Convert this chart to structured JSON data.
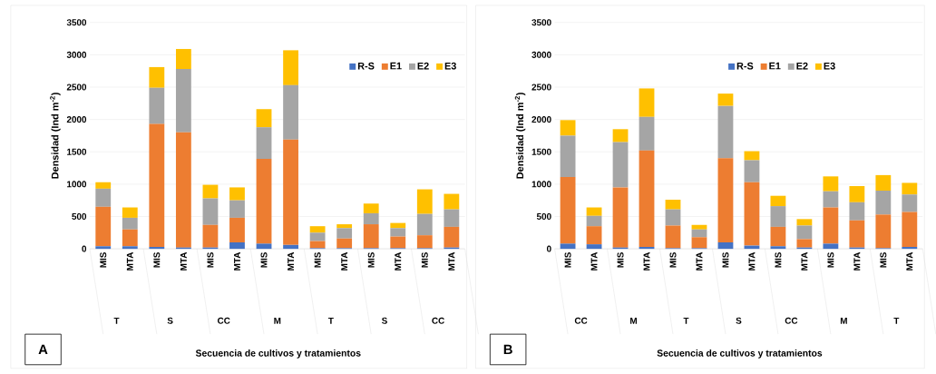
{
  "chart_data": [
    {
      "type": "bar",
      "stacked": true,
      "title": "A",
      "xlabel": "Secuencia de cultivos y tratamientos",
      "ylabel": "Densidad (Ind m$^{-2}$)",
      "categories": [
        "MIS",
        "MTA",
        "MIS",
        "MTA",
        "MIS",
        "MTA",
        "MIS",
        "MTA",
        "MIS",
        "MTA",
        "MIS",
        "MTA",
        "MIS",
        "MTA"
      ],
      "annotations": [
        "T",
        "S",
        "CC",
        "M",
        "T",
        "S",
        "CC"
      ],
      "series": [
        {
          "name": "R-S",
          "color": "#4472c4",
          "values": [
            40,
            40,
            30,
            20,
            20,
            100,
            80,
            60,
            10,
            10,
            10,
            10,
            10,
            20
          ]
        },
        {
          "name": "E1",
          "color": "#ed7d31",
          "values": [
            610,
            260,
            1900,
            1780,
            350,
            380,
            1310,
            1630,
            110,
            150,
            370,
            180,
            200,
            320
          ]
        },
        {
          "name": "E2",
          "color": "#a5a5a5",
          "values": [
            280,
            180,
            560,
            980,
            410,
            270,
            490,
            840,
            130,
            160,
            170,
            130,
            330,
            270
          ]
        },
        {
          "name": "E3",
          "color": "#ffc000",
          "values": [
            100,
            160,
            320,
            310,
            210,
            200,
            280,
            540,
            100,
            60,
            150,
            80,
            380,
            240
          ]
        }
      ],
      "ylim": [
        0,
        3500
      ],
      "yticks": [
        0,
        500,
        1000,
        1500,
        2000,
        2500,
        3000,
        3500
      ],
      "grid": "y",
      "legend": "top right"
    },
    {
      "type": "bar",
      "stacked": true,
      "title": "B",
      "xlabel": "Secuencia de cultivos y tratamientos",
      "ylabel": "Densidad (Ind m$^{-2}$)",
      "categories": [
        "MIS",
        "MTA",
        "MIS",
        "MTA",
        "MIS",
        "MTA",
        "MIS",
        "MTA",
        "MIS",
        "MTA",
        "MIS",
        "MTA",
        "MIS",
        "MTA"
      ],
      "annotations": [
        "CC",
        "M",
        "T",
        "S",
        "CC",
        "M",
        "T"
      ],
      "series": [
        {
          "name": "R-S",
          "color": "#4472c4",
          "values": [
            80,
            70,
            20,
            30,
            10,
            10,
            100,
            50,
            40,
            20,
            80,
            20,
            10,
            30
          ]
        },
        {
          "name": "E1",
          "color": "#ed7d31",
          "values": [
            1030,
            280,
            930,
            1490,
            350,
            170,
            1300,
            980,
            300,
            130,
            560,
            420,
            520,
            540
          ]
        },
        {
          "name": "E2",
          "color": "#a5a5a5",
          "values": [
            640,
            160,
            700,
            520,
            250,
            120,
            810,
            340,
            320,
            210,
            250,
            280,
            370,
            270
          ]
        },
        {
          "name": "E3",
          "color": "#ffc000",
          "values": [
            240,
            130,
            200,
            440,
            150,
            70,
            190,
            140,
            160,
            100,
            230,
            250,
            240,
            180
          ]
        }
      ],
      "ylim": [
        0,
        3500
      ],
      "yticks": [
        0,
        500,
        1000,
        1500,
        2000,
        2500,
        3000,
        3500
      ],
      "grid": "y",
      "legend": "top center"
    }
  ]
}
